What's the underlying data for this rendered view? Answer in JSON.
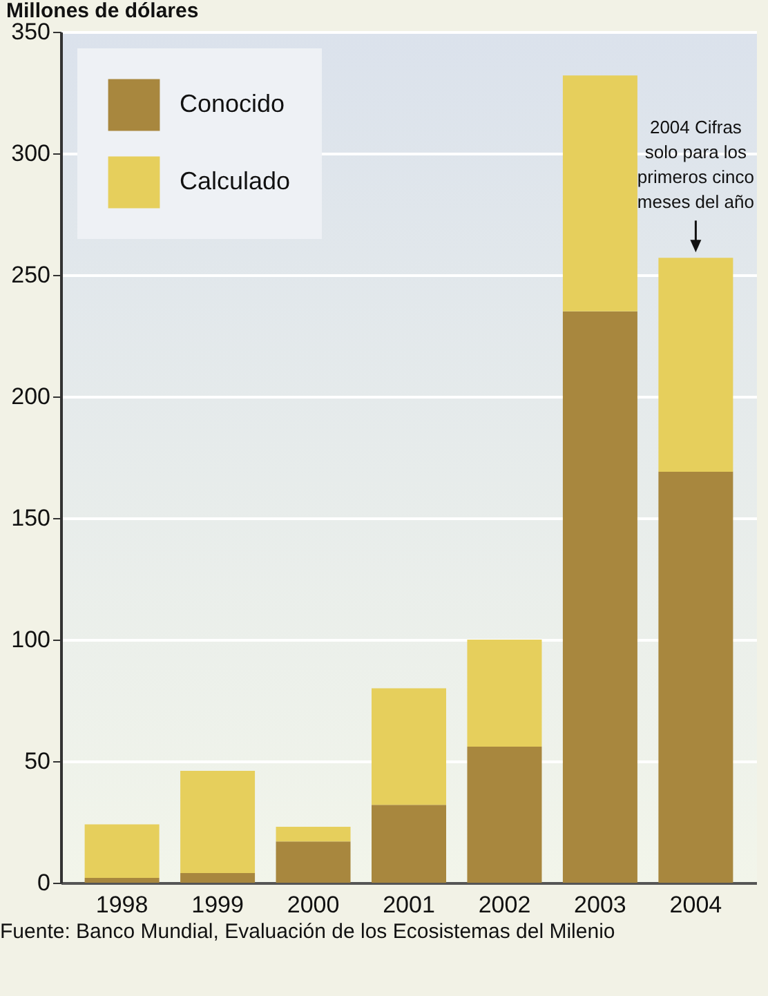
{
  "chart_data": {
    "type": "bar",
    "stacked": true,
    "ylabel": "Millones de dólares",
    "categories": [
      "1998",
      "1999",
      "2000",
      "2001",
      "2002",
      "2003",
      "2004"
    ],
    "series": [
      {
        "name": "Conocido",
        "color": "#a8873e",
        "values": [
          2,
          4,
          17,
          32,
          56,
          235,
          169
        ]
      },
      {
        "name": "Calculado",
        "color": "#e6cf5c",
        "values": [
          22,
          42,
          6,
          48,
          44,
          97,
          88
        ]
      }
    ],
    "ylim": [
      0,
      350
    ],
    "yticks": [
      0,
      50,
      100,
      150,
      200,
      250,
      300,
      350
    ],
    "grid": "y",
    "legend": "top left",
    "annotations": [
      {
        "text": "2004 Cifras solo para los primeros cinco meses del año",
        "x": "2004",
        "y": 257
      },
      "Fuente: Banco Mundial, Evaluación de los Ecosistemas del Milenio"
    ]
  }
}
